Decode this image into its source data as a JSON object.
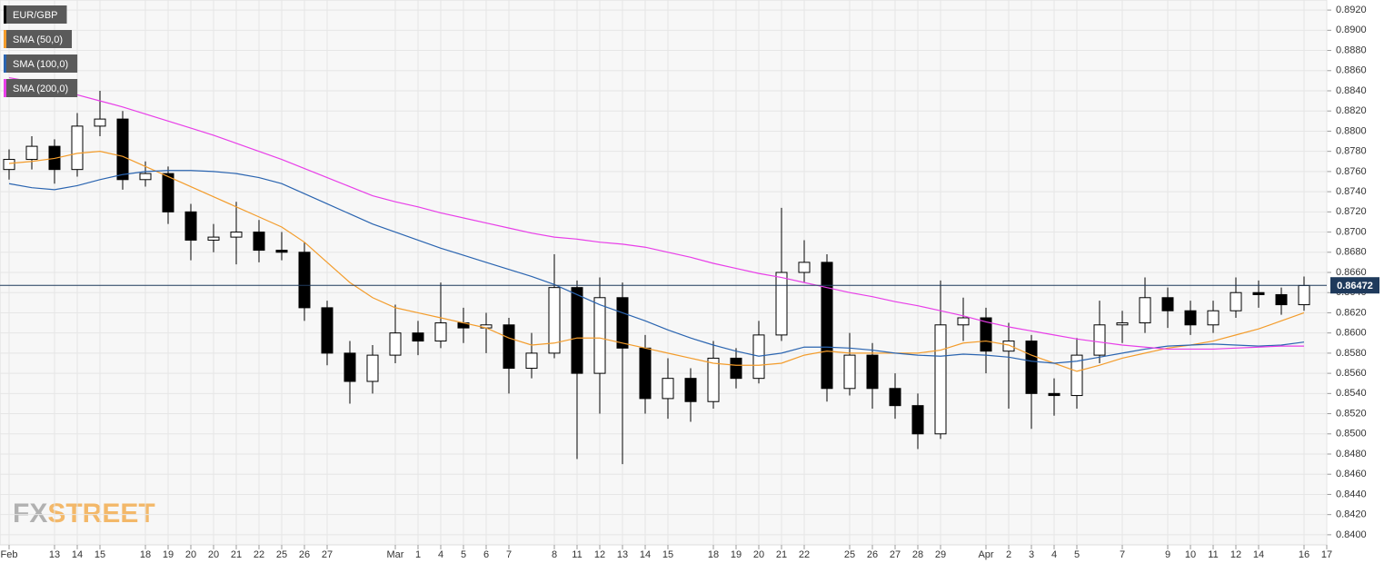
{
  "chart_data": {
    "type": "candlestick",
    "watermark": [
      "FX",
      "STREET"
    ],
    "categories": [
      "Feb",
      null,
      "13",
      "14",
      "15",
      null,
      "18",
      "19",
      "20",
      "20",
      "21",
      "22",
      "25",
      "26",
      "27",
      null,
      null,
      "Mar",
      "1",
      "4",
      "5",
      "6",
      "7",
      null,
      "8",
      "11",
      "12",
      "13",
      "14",
      "15",
      null,
      "18",
      "19",
      "20",
      "21",
      "22",
      null,
      "25",
      "26",
      "27",
      "28",
      "29",
      null,
      "Apr",
      "2",
      "3",
      "4",
      "5",
      null,
      "7",
      null,
      "9",
      "10",
      "11",
      "12",
      "14",
      null,
      "16",
      "17"
    ],
    "candles": {
      "name": "EUR/GBP",
      "up_color": "#ffffff",
      "down_color": "#000000",
      "open": [
        0.8762,
        0.8772,
        0.8785,
        0.8762,
        0.8805,
        0.8812,
        0.8752,
        0.8758,
        0.872,
        0.8692,
        0.8695,
        0.87,
        0.8682,
        0.868,
        0.8625,
        0.858,
        0.8552,
        0.8578,
        0.86,
        0.8592,
        0.861,
        0.8605,
        0.8608,
        0.8565,
        0.858,
        0.8645,
        0.856,
        0.8635,
        0.8585,
        0.8535,
        0.8555,
        0.8532,
        0.8575,
        0.8555,
        0.8598,
        0.866,
        0.867,
        0.8545,
        0.8578,
        0.8545,
        0.8528,
        0.85,
        0.8608,
        0.8615,
        0.8582,
        0.8592,
        0.854,
        0.8538,
        0.8578,
        0.8608,
        0.861,
        0.8635,
        0.8622,
        0.8608,
        0.8622,
        0.864,
        0.8638,
        0.8628,
        null
      ],
      "high": [
        0.8782,
        0.8795,
        0.8792,
        0.8818,
        0.884,
        0.882,
        0.877,
        0.8765,
        0.8728,
        0.8708,
        0.873,
        0.8712,
        0.87,
        0.869,
        0.8632,
        0.8592,
        0.8588,
        0.8628,
        0.8612,
        0.865,
        0.8625,
        0.862,
        0.8615,
        0.86,
        0.8678,
        0.8652,
        0.8655,
        0.865,
        0.8598,
        0.8575,
        0.8565,
        0.8592,
        0.8585,
        0.8612,
        0.8724,
        0.8692,
        0.8678,
        0.86,
        0.859,
        0.856,
        0.854,
        0.8652,
        0.8635,
        0.8625,
        0.861,
        0.8598,
        0.8555,
        0.8595,
        0.8632,
        0.8622,
        0.8655,
        0.8645,
        0.8632,
        0.8632,
        0.8655,
        0.8652,
        0.8645,
        0.8656,
        null
      ],
      "low": [
        0.8752,
        0.8762,
        0.8748,
        0.8755,
        0.8795,
        0.8742,
        0.8745,
        0.8708,
        0.8672,
        0.868,
        0.8668,
        0.867,
        0.8672,
        0.8612,
        0.8568,
        0.853,
        0.854,
        0.857,
        0.8578,
        0.8585,
        0.859,
        0.858,
        0.854,
        0.8555,
        0.8575,
        0.8475,
        0.852,
        0.847,
        0.852,
        0.8515,
        0.8512,
        0.8525,
        0.8545,
        0.855,
        0.8592,
        0.865,
        0.8532,
        0.8538,
        0.8525,
        0.8515,
        0.8485,
        0.8495,
        0.8592,
        0.856,
        0.8525,
        0.8505,
        0.8518,
        0.8525,
        0.857,
        0.859,
        0.86,
        0.8605,
        0.8598,
        0.86,
        0.8615,
        0.8625,
        0.8618,
        0.8622,
        null
      ],
      "close": [
        0.8772,
        0.8785,
        0.8762,
        0.8805,
        0.8812,
        0.8752,
        0.8758,
        0.872,
        0.8692,
        0.8695,
        0.87,
        0.8682,
        0.868,
        0.8625,
        0.858,
        0.8552,
        0.8578,
        0.86,
        0.8592,
        0.861,
        0.8605,
        0.8608,
        0.8565,
        0.858,
        0.8645,
        0.856,
        0.8635,
        0.8585,
        0.8535,
        0.8555,
        0.8532,
        0.8575,
        0.8555,
        0.8598,
        0.866,
        0.867,
        0.8545,
        0.8578,
        0.8545,
        0.8528,
        0.85,
        0.8608,
        0.8615,
        0.8582,
        0.8592,
        0.854,
        0.8538,
        0.8578,
        0.8608,
        0.861,
        0.8635,
        0.8622,
        0.8608,
        0.8622,
        0.864,
        0.8638,
        0.8628,
        0.8647,
        null
      ]
    },
    "series": [
      {
        "name": "SMA (50,0)",
        "color": "#f39c2b",
        "values": [
          0.8768,
          0.877,
          0.8773,
          0.8778,
          0.878,
          0.8775,
          0.8765,
          0.8755,
          0.8745,
          0.8735,
          0.8725,
          0.8715,
          0.8705,
          0.869,
          0.867,
          0.865,
          0.8635,
          0.8625,
          0.862,
          0.8615,
          0.861,
          0.8605,
          0.8595,
          0.8588,
          0.859,
          0.8595,
          0.8595,
          0.859,
          0.8585,
          0.858,
          0.8575,
          0.857,
          0.8568,
          0.8568,
          0.857,
          0.8578,
          0.8582,
          0.858,
          0.858,
          0.858,
          0.858,
          0.8583,
          0.859,
          0.8592,
          0.8588,
          0.8578,
          0.857,
          0.8562,
          0.8568,
          0.8575,
          0.858,
          0.8585,
          0.8588,
          0.8592,
          0.8598,
          0.8604,
          0.8612,
          0.862,
          null
        ]
      },
      {
        "name": "SMA (100,0)",
        "color": "#2a64b0",
        "values": [
          0.8748,
          0.8744,
          0.8742,
          0.8746,
          0.8752,
          0.8757,
          0.876,
          0.8761,
          0.8761,
          0.876,
          0.8758,
          0.8754,
          0.8748,
          0.8738,
          0.8728,
          0.8718,
          0.8708,
          0.87,
          0.8692,
          0.8684,
          0.8677,
          0.867,
          0.8663,
          0.8656,
          0.8648,
          0.8638,
          0.8628,
          0.862,
          0.8612,
          0.8603,
          0.8595,
          0.8588,
          0.8582,
          0.8577,
          0.858,
          0.8586,
          0.8586,
          0.8585,
          0.8583,
          0.858,
          0.8578,
          0.8577,
          0.8579,
          0.8578,
          0.8576,
          0.8572,
          0.857,
          0.8572,
          0.8576,
          0.858,
          0.8584,
          0.8587,
          0.8588,
          0.8589,
          0.8588,
          0.8587,
          0.8588,
          0.8591,
          null
        ]
      },
      {
        "name": "SMA (200,0)",
        "color": "#e83ee8",
        "values": [
          0.8853,
          0.8849,
          0.8843,
          0.8836,
          0.883,
          0.8824,
          0.8817,
          0.881,
          0.8803,
          0.8796,
          0.8788,
          0.878,
          0.8772,
          0.8763,
          0.8754,
          0.8745,
          0.8736,
          0.873,
          0.8725,
          0.8719,
          0.8714,
          0.8709,
          0.8704,
          0.8699,
          0.8695,
          0.8693,
          0.869,
          0.8688,
          0.8685,
          0.868,
          0.8675,
          0.8669,
          0.8664,
          0.8659,
          0.8655,
          0.865,
          0.8645,
          0.864,
          0.8636,
          0.8631,
          0.8627,
          0.8622,
          0.8617,
          0.8611,
          0.8606,
          0.8602,
          0.8598,
          0.8594,
          0.8591,
          0.8588,
          0.8586,
          0.8584,
          0.8584,
          0.8584,
          0.8585,
          0.8586,
          0.8587,
          0.8587,
          null
        ]
      }
    ],
    "last_price": 0.86472,
    "last_price_color": "#1f3a5c",
    "ylim": [
      0.839,
      0.893
    ],
    "yticks": [
      {
        "value": 0.84,
        "label": "0.8400"
      },
      {
        "value": 0.842,
        "label": "0.8420"
      },
      {
        "value": 0.844,
        "label": "0.8440"
      },
      {
        "value": 0.846,
        "label": "0.8460"
      },
      {
        "value": 0.848,
        "label": "0.8480"
      },
      {
        "value": 0.85,
        "label": "0.8500"
      },
      {
        "value": 0.852,
        "label": "0.8520"
      },
      {
        "value": 0.854,
        "label": "0.8540"
      },
      {
        "value": 0.856,
        "label": "0.8560"
      },
      {
        "value": 0.858,
        "label": "0.8580"
      },
      {
        "value": 0.86,
        "label": "0.8600"
      },
      {
        "value": 0.862,
        "label": "0.8620"
      },
      {
        "value": 0.864,
        "label": "0.8640"
      },
      {
        "value": 0.866,
        "label": "0.8660"
      },
      {
        "value": 0.868,
        "label": "0.8680"
      },
      {
        "value": 0.87,
        "label": "0.8700"
      },
      {
        "value": 0.872,
        "label": "0.8720"
      },
      {
        "value": 0.874,
        "label": "0.8740"
      },
      {
        "value": 0.876,
        "label": "0.8760"
      },
      {
        "value": 0.878,
        "label": "0.8780"
      },
      {
        "value": 0.88,
        "label": "0.8800"
      },
      {
        "value": 0.882,
        "label": "0.8820"
      },
      {
        "value": 0.884,
        "label": "0.8840"
      },
      {
        "value": 0.886,
        "label": "0.8860"
      },
      {
        "value": 0.888,
        "label": "0.8880"
      },
      {
        "value": 0.89,
        "label": "0.8900"
      },
      {
        "value": 0.892,
        "label": "0.8920"
      }
    ],
    "grid": true,
    "legend": "top-left"
  }
}
